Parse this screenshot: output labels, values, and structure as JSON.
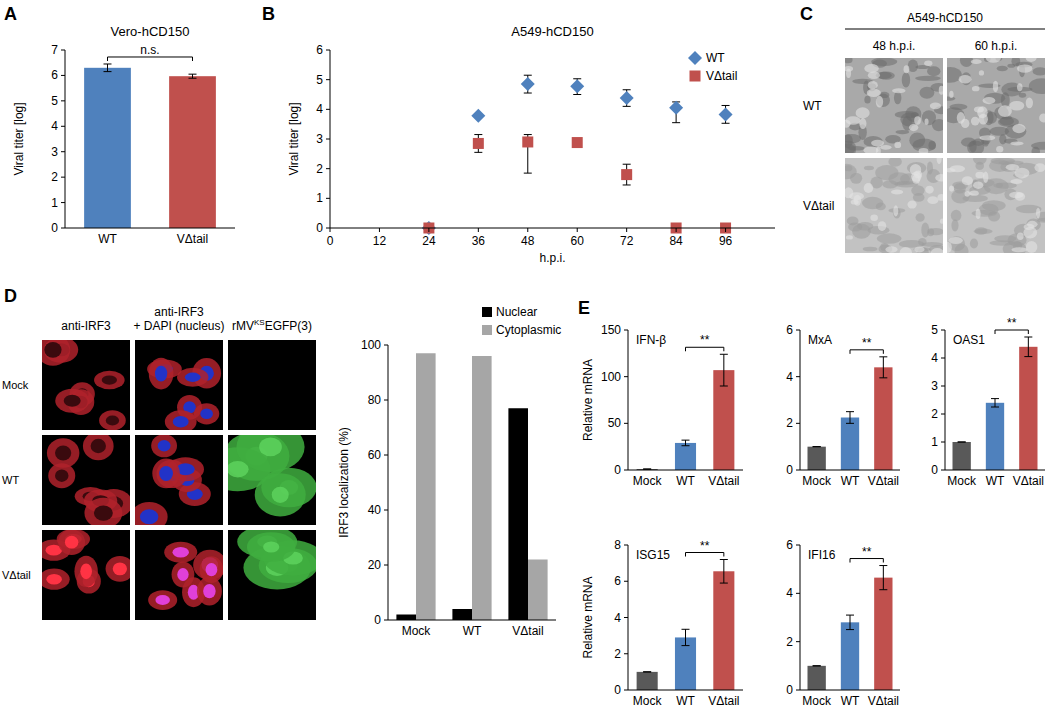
{
  "chart_data": [
    {
      "panel": "A",
      "type": "bar",
      "title": "Vero-hCD150",
      "categories": [
        "WT",
        "VΔtail"
      ],
      "values": [
        6.3,
        5.97
      ],
      "errors": [
        0.15,
        0.08
      ],
      "colors": [
        "#4f81bd",
        "#c0504d"
      ],
      "y_label": "Viral titer [log]",
      "ylim": [
        0,
        7
      ],
      "yticks": [
        0,
        1,
        2,
        3,
        4,
        5,
        6,
        7
      ],
      "annotation": "n.s."
    },
    {
      "panel": "B",
      "type": "scatter",
      "title": "A549-hCD150",
      "x": [
        24,
        36,
        48,
        60,
        72,
        84,
        96
      ],
      "x_label": "h.p.i.",
      "y_label": "Viral titer [log]",
      "xlim": [
        0,
        108
      ],
      "xticks": [
        0,
        12,
        24,
        36,
        48,
        60,
        72,
        84,
        96
      ],
      "ylim": [
        0,
        6
      ],
      "yticks": [
        0,
        1,
        2,
        3,
        4,
        5,
        6
      ],
      "legend": "top-right",
      "series": [
        {
          "name": "WT",
          "color": "#4f81bd",
          "marker": "diamond",
          "values": [
            0,
            3.78,
            4.85,
            4.78,
            4.38,
            4.05,
            3.83
          ],
          "error_low": [
            0,
            0.05,
            0.3,
            0.28,
            0.28,
            0.5,
            0.3
          ],
          "error_high": [
            0,
            0.05,
            0.3,
            0.25,
            0.28,
            0.2,
            0.3
          ]
        },
        {
          "name": "VΔtail",
          "color": "#c0504d",
          "marker": "square",
          "values": [
            0,
            2.85,
            2.9,
            2.88,
            1.8,
            0,
            0
          ],
          "error_low": [
            0,
            0.3,
            1.05,
            0,
            0.35,
            0,
            0
          ],
          "error_high": [
            0,
            0.3,
            0.25,
            0,
            0.35,
            0,
            0
          ]
        }
      ]
    },
    {
      "type": "bar",
      "categories": [
        "Mock",
        "WT",
        "VΔtail"
      ],
      "y_label": "IRF3 localization (%)",
      "ylim": [
        0,
        100
      ],
      "yticks": [
        0,
        20,
        40,
        60,
        80,
        100
      ],
      "legend": "top-right",
      "series": [
        {
          "name": "Nuclear",
          "color": "#000000",
          "values": [
            2,
            4,
            77
          ]
        },
        {
          "name": "Cytoplasmic",
          "color": "#a6a6a6",
          "values": [
            97,
            96,
            22
          ]
        }
      ]
    },
    {
      "panel": "E",
      "type": "bar",
      "title": "IFN-β",
      "categories": [
        "Mock",
        "WT",
        "VΔtail"
      ],
      "values": [
        1,
        29,
        107
      ],
      "errors": [
        0,
        3,
        17
      ],
      "colors": [
        "#595959",
        "#4f81bd",
        "#c0504d"
      ],
      "y_label": "Relative mRNA",
      "ylim": [
        0,
        150
      ],
      "yticks": [
        0,
        50,
        100,
        150
      ],
      "annotation": "**"
    },
    {
      "type": "bar",
      "title": "MxA",
      "categories": [
        "Mock",
        "WT",
        "VΔtail"
      ],
      "values": [
        1,
        2.25,
        4.4
      ],
      "errors": [
        0,
        0.25,
        0.45
      ],
      "colors": [
        "#595959",
        "#4f81bd",
        "#c0504d"
      ],
      "ylim": [
        0,
        6
      ],
      "yticks": [
        0,
        2,
        4,
        6
      ],
      "annotation": "**"
    },
    {
      "type": "bar",
      "title": "OAS1",
      "categories": [
        "Mock",
        "WT",
        "VΔtail"
      ],
      "values": [
        1,
        2.4,
        4.4
      ],
      "errors": [
        0,
        0.15,
        0.35
      ],
      "colors": [
        "#595959",
        "#4f81bd",
        "#c0504d"
      ],
      "ylim": [
        0,
        5
      ],
      "yticks": [
        0,
        1,
        2,
        3,
        4,
        5
      ],
      "annotation": "**"
    },
    {
      "type": "bar",
      "title": "ISG15",
      "categories": [
        "Mock",
        "WT",
        "VΔtail"
      ],
      "values": [
        1,
        2.9,
        6.55
      ],
      "errors": [
        0,
        0.45,
        0.65
      ],
      "colors": [
        "#595959",
        "#4f81bd",
        "#c0504d"
      ],
      "y_label": "Relative mRNA",
      "ylim": [
        0,
        8
      ],
      "yticks": [
        0,
        2,
        4,
        6,
        8
      ],
      "annotation": "**"
    },
    {
      "type": "bar",
      "title": "IFI16",
      "categories": [
        "Mock",
        "WT",
        "VΔtail"
      ],
      "values": [
        1,
        2.8,
        4.65
      ],
      "errors": [
        0,
        0.3,
        0.5
      ],
      "colors": [
        "#595959",
        "#4f81bd",
        "#c0504d"
      ],
      "ylim": [
        0,
        6
      ],
      "yticks": [
        0,
        2,
        4,
        6
      ],
      "annotation": "**"
    }
  ],
  "image_panels": {
    "C": {
      "panel": "C",
      "title": "A549-hCD150",
      "columns": [
        "48 h.p.i.",
        "60 h.p.i."
      ],
      "rows": [
        "WT",
        "VΔtail"
      ]
    },
    "D": {
      "panel": "D",
      "columns": [
        {
          "lines": [
            "anti-IRF3"
          ]
        },
        {
          "lines": [
            "anti-IRF3",
            "+ DAPI (nucleus)"
          ]
        },
        {
          "base": "rMV",
          "sup": "KS",
          "rest": "EGFP(3)"
        }
      ],
      "rows": [
        "Mock",
        "WT",
        "VΔtail"
      ]
    }
  }
}
